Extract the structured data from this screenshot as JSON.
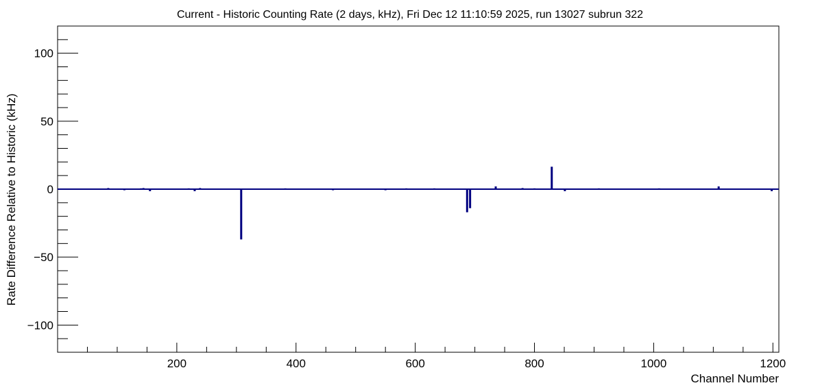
{
  "chart_data": {
    "type": "bar",
    "title": "Current - Historic Counting Rate (2 days, kHz), Fri Dec 12 11:10:59 2025, run 13027 subrun 322",
    "xlabel": "Channel Number",
    "ylabel": "Rate Difference Relative to Historic (kHz)",
    "xlim": [
      0,
      1210
    ],
    "ylim": [
      -120,
      120
    ],
    "x_ticks": [
      200,
      400,
      600,
      800,
      1000,
      1200
    ],
    "x_tick_labels": [
      "200",
      "400",
      "600",
      "800",
      "1000",
      "1200"
    ],
    "y_ticks": [
      -100,
      -50,
      0,
      50,
      100
    ],
    "y_tick_labels": [
      "−100",
      "−50",
      "0",
      "50",
      "100"
    ],
    "grid": false,
    "legend": "none",
    "series_color": "#000080",
    "baseline": 0,
    "bars": [
      {
        "x": 85,
        "value": 0.8
      },
      {
        "x": 112,
        "value": -0.8
      },
      {
        "x": 140,
        "value": 0.6
      },
      {
        "x": 144,
        "value": 0.8
      },
      {
        "x": 155,
        "value": -1.5
      },
      {
        "x": 220,
        "value": 0.6
      },
      {
        "x": 230,
        "value": -1.5
      },
      {
        "x": 239,
        "value": 0.8
      },
      {
        "x": 308,
        "value": -37
      },
      {
        "x": 382,
        "value": 0.6
      },
      {
        "x": 462,
        "value": -0.8
      },
      {
        "x": 550,
        "value": -0.8
      },
      {
        "x": 585,
        "value": 0.6
      },
      {
        "x": 632,
        "value": 0.6
      },
      {
        "x": 687,
        "value": -17
      },
      {
        "x": 692,
        "value": -14
      },
      {
        "x": 735,
        "value": 2
      },
      {
        "x": 780,
        "value": 0.8
      },
      {
        "x": 800,
        "value": 0.6
      },
      {
        "x": 829,
        "value": 16.5
      },
      {
        "x": 851,
        "value": -1.5
      },
      {
        "x": 908,
        "value": 0.6
      },
      {
        "x": 1009,
        "value": 0.6
      },
      {
        "x": 1109,
        "value": 2
      },
      {
        "x": 1198,
        "value": -1.5
      }
    ]
  }
}
